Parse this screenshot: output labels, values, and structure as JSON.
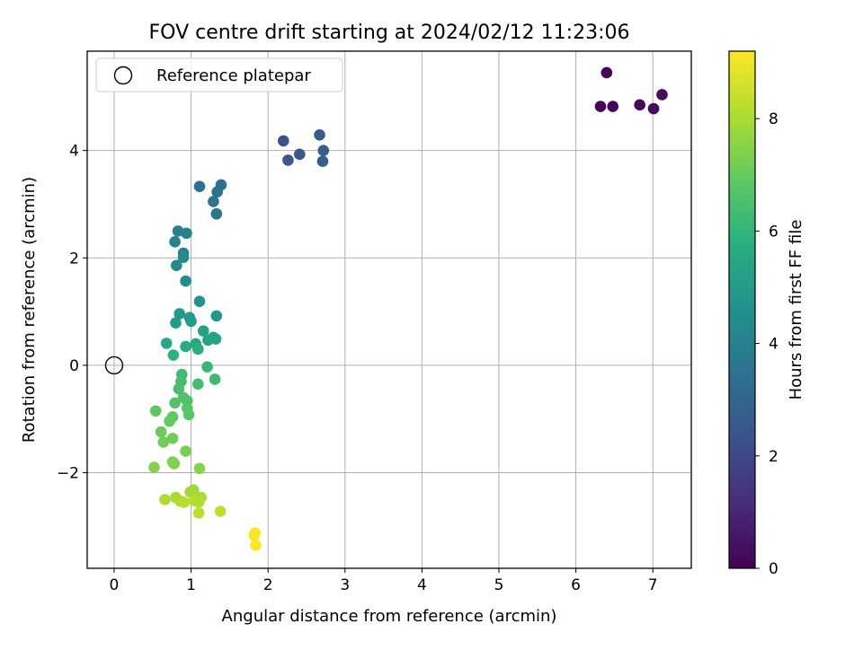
{
  "chart_data": {
    "type": "scatter",
    "title": "FOV centre drift starting at 2024/02/12 11:23:06",
    "xlabel": "Angular distance from reference (arcmin)",
    "ylabel": "Rotation from reference (arcmin)",
    "xlim": [
      -0.35,
      7.5
    ],
    "ylim": [
      -3.78,
      5.85
    ],
    "xticks": [
      0,
      1,
      2,
      3,
      4,
      5,
      6,
      7
    ],
    "xtick_labels": [
      "0",
      "1",
      "2",
      "3",
      "4",
      "5",
      "6",
      "7"
    ],
    "yticks": [
      -2,
      0,
      2,
      4
    ],
    "ytick_labels": [
      "−2",
      "0",
      "2",
      "4"
    ],
    "grid": true,
    "legend": {
      "location": "upper-left",
      "entries": [
        "Reference platepar"
      ]
    },
    "reference_point": {
      "x": 0,
      "y": 0,
      "label": "Reference platepar"
    },
    "colorbar": {
      "label": "Hours from first FF file",
      "colormap": "viridis",
      "range": [
        0,
        9.2
      ],
      "ticks": [
        0,
        2,
        4,
        6,
        8
      ],
      "tick_labels": [
        "0",
        "2",
        "4",
        "6",
        "8"
      ]
    },
    "points": [
      {
        "x": 6.4,
        "y": 5.45,
        "c": 0.1
      },
      {
        "x": 6.32,
        "y": 4.82,
        "c": 0.1
      },
      {
        "x": 6.48,
        "y": 4.82,
        "c": 0.15
      },
      {
        "x": 6.83,
        "y": 4.85,
        "c": 0.2
      },
      {
        "x": 7.01,
        "y": 4.78,
        "c": 0.25
      },
      {
        "x": 7.12,
        "y": 5.04,
        "c": 0.3
      },
      {
        "x": 2.2,
        "y": 4.18,
        "c": 2.4
      },
      {
        "x": 2.26,
        "y": 3.82,
        "c": 2.5
      },
      {
        "x": 2.41,
        "y": 3.93,
        "c": 2.6
      },
      {
        "x": 2.67,
        "y": 4.29,
        "c": 2.7
      },
      {
        "x": 2.72,
        "y": 4.0,
        "c": 2.8
      },
      {
        "x": 2.71,
        "y": 3.8,
        "c": 2.8
      },
      {
        "x": 1.11,
        "y": 3.33,
        "c": 3.4
      },
      {
        "x": 1.39,
        "y": 3.36,
        "c": 3.4
      },
      {
        "x": 1.34,
        "y": 3.23,
        "c": 3.5
      },
      {
        "x": 1.29,
        "y": 3.05,
        "c": 3.6
      },
      {
        "x": 1.33,
        "y": 2.82,
        "c": 3.7
      },
      {
        "x": 0.83,
        "y": 2.5,
        "c": 4.0
      },
      {
        "x": 0.94,
        "y": 2.46,
        "c": 4.0
      },
      {
        "x": 0.79,
        "y": 2.3,
        "c": 4.1
      },
      {
        "x": 0.9,
        "y": 2.09,
        "c": 4.2
      },
      {
        "x": 0.9,
        "y": 2.01,
        "c": 4.3
      },
      {
        "x": 0.81,
        "y": 1.86,
        "c": 4.3
      },
      {
        "x": 0.93,
        "y": 1.57,
        "c": 4.5
      },
      {
        "x": 1.11,
        "y": 1.19,
        "c": 4.8
      },
      {
        "x": 0.85,
        "y": 0.96,
        "c": 5.0
      },
      {
        "x": 0.98,
        "y": 0.89,
        "c": 5.0
      },
      {
        "x": 1.33,
        "y": 0.92,
        "c": 5.0
      },
      {
        "x": 1.0,
        "y": 0.82,
        "c": 5.1
      },
      {
        "x": 0.8,
        "y": 0.79,
        "c": 5.1
      },
      {
        "x": 1.16,
        "y": 0.64,
        "c": 5.3
      },
      {
        "x": 1.29,
        "y": 0.52,
        "c": 5.3
      },
      {
        "x": 1.22,
        "y": 0.47,
        "c": 5.4
      },
      {
        "x": 1.32,
        "y": 0.49,
        "c": 5.4
      },
      {
        "x": 0.68,
        "y": 0.41,
        "c": 5.6
      },
      {
        "x": 1.06,
        "y": 0.4,
        "c": 5.6
      },
      {
        "x": 0.93,
        "y": 0.35,
        "c": 5.7
      },
      {
        "x": 1.09,
        "y": 0.3,
        "c": 5.8
      },
      {
        "x": 0.77,
        "y": 0.19,
        "c": 5.9
      },
      {
        "x": 1.21,
        "y": -0.03,
        "c": 6.1
      },
      {
        "x": 0.88,
        "y": -0.17,
        "c": 6.3
      },
      {
        "x": 1.31,
        "y": -0.26,
        "c": 6.3
      },
      {
        "x": 0.87,
        "y": -0.3,
        "c": 6.4
      },
      {
        "x": 1.09,
        "y": -0.35,
        "c": 6.4
      },
      {
        "x": 0.84,
        "y": -0.44,
        "c": 6.5
      },
      {
        "x": 0.9,
        "y": -0.6,
        "c": 6.6
      },
      {
        "x": 0.95,
        "y": -0.66,
        "c": 6.6
      },
      {
        "x": 0.79,
        "y": -0.7,
        "c": 6.7
      },
      {
        "x": 0.95,
        "y": -0.8,
        "c": 6.8
      },
      {
        "x": 0.97,
        "y": -0.92,
        "c": 6.8
      },
      {
        "x": 0.54,
        "y": -0.85,
        "c": 6.9
      },
      {
        "x": 0.76,
        "y": -0.96,
        "c": 6.9
      },
      {
        "x": 0.72,
        "y": -1.04,
        "c": 7.0
      },
      {
        "x": 0.61,
        "y": -1.24,
        "c": 7.1
      },
      {
        "x": 0.76,
        "y": -1.36,
        "c": 7.2
      },
      {
        "x": 0.64,
        "y": -1.43,
        "c": 7.2
      },
      {
        "x": 0.93,
        "y": -1.6,
        "c": 7.3
      },
      {
        "x": 0.76,
        "y": -1.8,
        "c": 7.4
      },
      {
        "x": 0.78,
        "y": -1.83,
        "c": 7.4
      },
      {
        "x": 0.52,
        "y": -1.9,
        "c": 7.5
      },
      {
        "x": 1.11,
        "y": -1.92,
        "c": 7.5
      },
      {
        "x": 1.03,
        "y": -2.32,
        "c": 7.8
      },
      {
        "x": 0.99,
        "y": -2.36,
        "c": 7.9
      },
      {
        "x": 1.06,
        "y": -2.44,
        "c": 7.9
      },
      {
        "x": 1.13,
        "y": -2.46,
        "c": 8.0
      },
      {
        "x": 0.8,
        "y": -2.46,
        "c": 8.0
      },
      {
        "x": 0.66,
        "y": -2.5,
        "c": 8.1
      },
      {
        "x": 0.86,
        "y": -2.53,
        "c": 8.1
      },
      {
        "x": 1.04,
        "y": -2.52,
        "c": 8.2
      },
      {
        "x": 1.1,
        "y": -2.55,
        "c": 8.2
      },
      {
        "x": 0.91,
        "y": -2.55,
        "c": 8.2
      },
      {
        "x": 1.1,
        "y": -2.75,
        "c": 8.3
      },
      {
        "x": 1.38,
        "y": -2.72,
        "c": 8.3
      },
      {
        "x": 1.83,
        "y": -3.12,
        "c": 9.1
      },
      {
        "x": 1.82,
        "y": -3.17,
        "c": 9.1
      },
      {
        "x": 1.84,
        "y": -3.35,
        "c": 9.2
      }
    ]
  }
}
